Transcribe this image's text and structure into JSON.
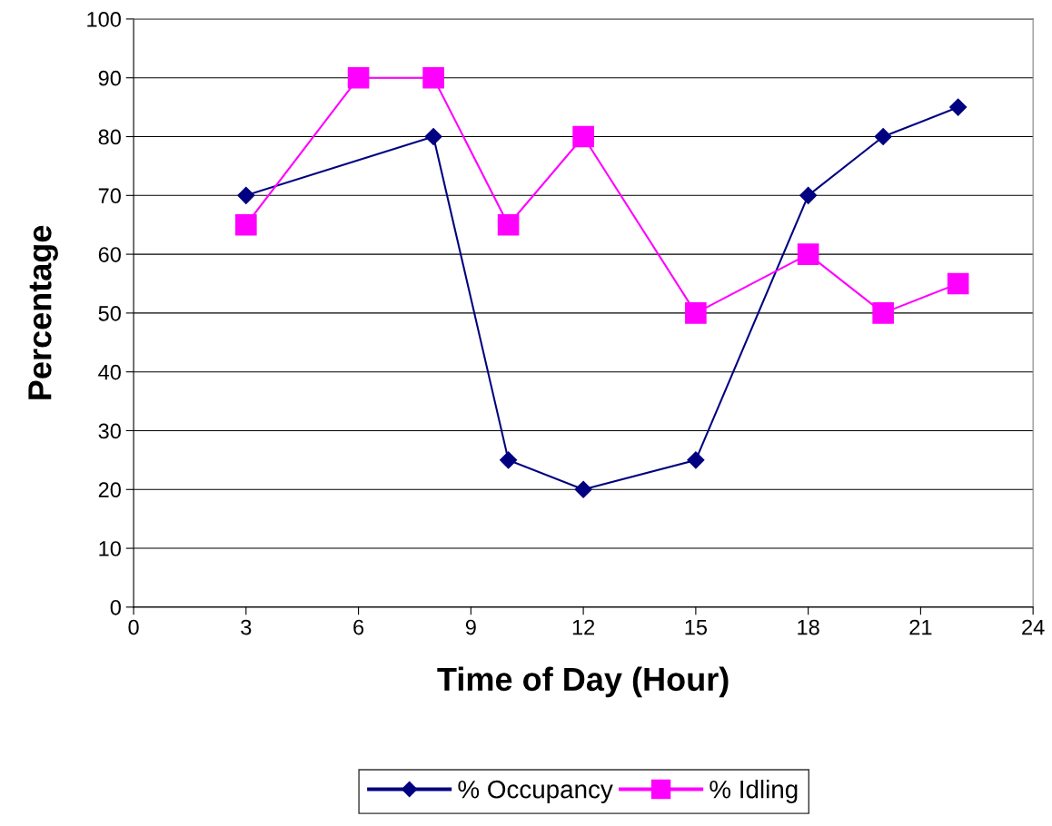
{
  "chart_data": {
    "type": "line",
    "xlabel": "Time of Day (Hour)",
    "ylabel": "Percentage",
    "series": [
      {
        "name": "% Occupancy",
        "color": "#000080",
        "marker": "diamond",
        "x": [
          3,
          8,
          10,
          12,
          15,
          18,
          20,
          22
        ],
        "values": [
          70,
          80,
          25,
          20,
          25,
          70,
          80,
          85
        ]
      },
      {
        "name": "% Idling",
        "color": "#ff00ff",
        "marker": "square",
        "x": [
          3,
          6,
          8,
          10,
          12,
          15,
          18,
          20,
          22
        ],
        "values": [
          65,
          90,
          90,
          65,
          80,
          50,
          60,
          50,
          55
        ]
      }
    ],
    "xlim": [
      0,
      24
    ],
    "xticks": [
      0,
      3,
      6,
      9,
      12,
      15,
      18,
      21,
      24
    ],
    "ylim": [
      0,
      100
    ],
    "yticks": [
      0,
      10,
      20,
      30,
      40,
      50,
      60,
      70,
      80,
      90,
      100
    ],
    "grid": "y",
    "legend": "bottom",
    "line_style": "solid"
  }
}
